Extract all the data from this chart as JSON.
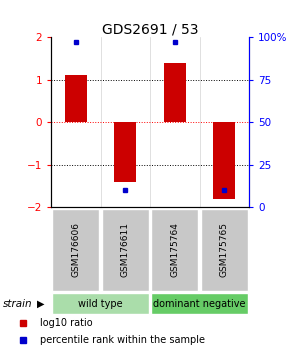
{
  "title": "GDS2691 / 53",
  "samples": [
    "GSM176606",
    "GSM176611",
    "GSM175764",
    "GSM175765"
  ],
  "log10_ratio": [
    1.1,
    -1.4,
    1.4,
    -1.8
  ],
  "percentile_rank": [
    97,
    10,
    97,
    10
  ],
  "bar_color": "#cc0000",
  "dot_color": "#0000cc",
  "ylim": [
    -2,
    2
  ],
  "y2lim": [
    0,
    100
  ],
  "yticks_left": [
    -2,
    -1,
    0,
    1,
    2
  ],
  "yticks_right": [
    0,
    25,
    50,
    75,
    100
  ],
  "ytick_labels_right": [
    "0",
    "25",
    "50",
    "75",
    "100%"
  ],
  "hlines_black": [
    1.0,
    -1.0
  ],
  "hline_red": 0.0,
  "groups": [
    {
      "label": "wild type",
      "samples": [
        0,
        1
      ],
      "color": "#aaddaa"
    },
    {
      "label": "dominant negative",
      "samples": [
        2,
        3
      ],
      "color": "#66cc66"
    }
  ],
  "strain_label": "strain",
  "legend": [
    {
      "color": "#cc0000",
      "label": "log10 ratio"
    },
    {
      "color": "#0000cc",
      "label": "percentile rank within the sample"
    }
  ],
  "bg_color": "#ffffff",
  "bar_width": 0.45
}
